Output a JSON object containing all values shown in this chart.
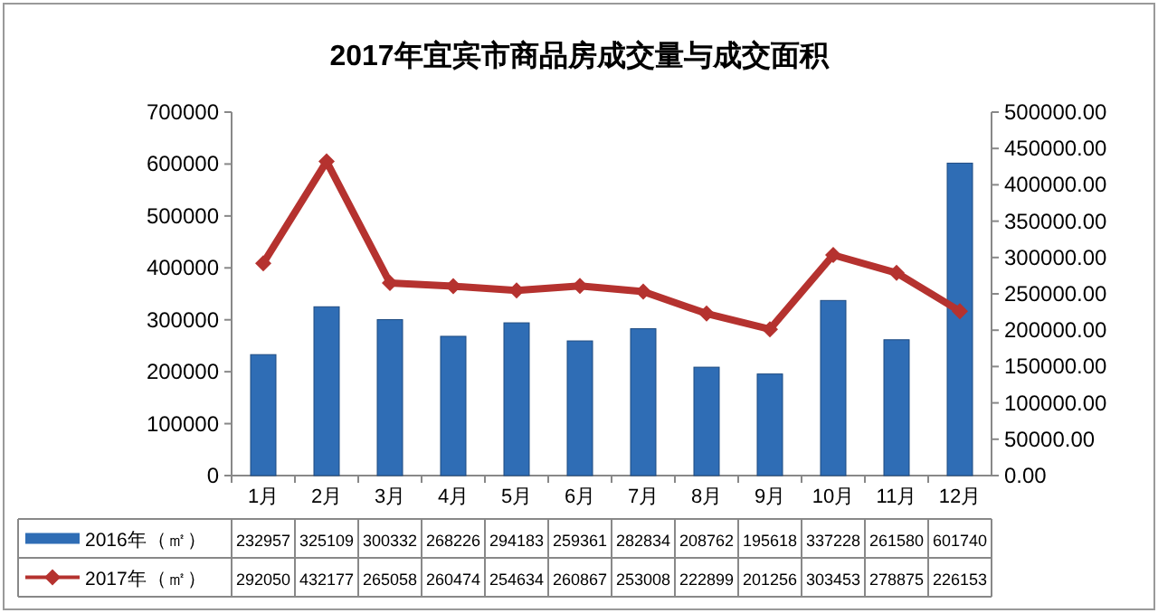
{
  "chart_data": {
    "type": "bar",
    "title": "2017年宜宾市商品房成交量与成交面积",
    "categories": [
      "1月",
      "2月",
      "3月",
      "4月",
      "5月",
      "6月",
      "7月",
      "8月",
      "9月",
      "10月",
      "11月",
      "12月"
    ],
    "series": [
      {
        "name": "2016年（㎡）",
        "color": "#2f6db5",
        "values": [
          232957,
          325109,
          300332,
          268226,
          294183,
          259361,
          282834,
          208762,
          195618,
          337228,
          261580,
          601740
        ]
      },
      {
        "name": "2017年（㎡）",
        "type": "line",
        "axis": "y2",
        "color": "#b5322f",
        "values": [
          292050,
          432177,
          265058,
          260474,
          254634,
          260867,
          253008,
          222899,
          201256,
          303453,
          278875,
          226153
        ]
      }
    ],
    "ylim": [
      0,
      700000
    ],
    "yticks": [
      0,
      100000,
      200000,
      300000,
      400000,
      500000,
      600000,
      700000
    ],
    "y2lim": [
      0,
      500000
    ],
    "y2ticks": [
      {
        "value": 0,
        "label": "0.00"
      },
      {
        "value": 50000,
        "label": "50000.00"
      },
      {
        "value": 100000,
        "label": "100000.00"
      },
      {
        "value": 150000,
        "label": "150000.00"
      },
      {
        "value": 200000,
        "label": "200000.00"
      },
      {
        "value": 250000,
        "label": "250000.00"
      },
      {
        "value": 300000,
        "label": "300000.00"
      },
      {
        "value": 350000,
        "label": "350000.00"
      },
      {
        "value": 400000,
        "label": "400000.00"
      },
      {
        "value": 450000,
        "label": "450000.00"
      },
      {
        "value": 500000,
        "label": "500000.00"
      }
    ],
    "data_labels": true,
    "legend": "bottom",
    "marker": "diamond",
    "line_style": "solid"
  }
}
